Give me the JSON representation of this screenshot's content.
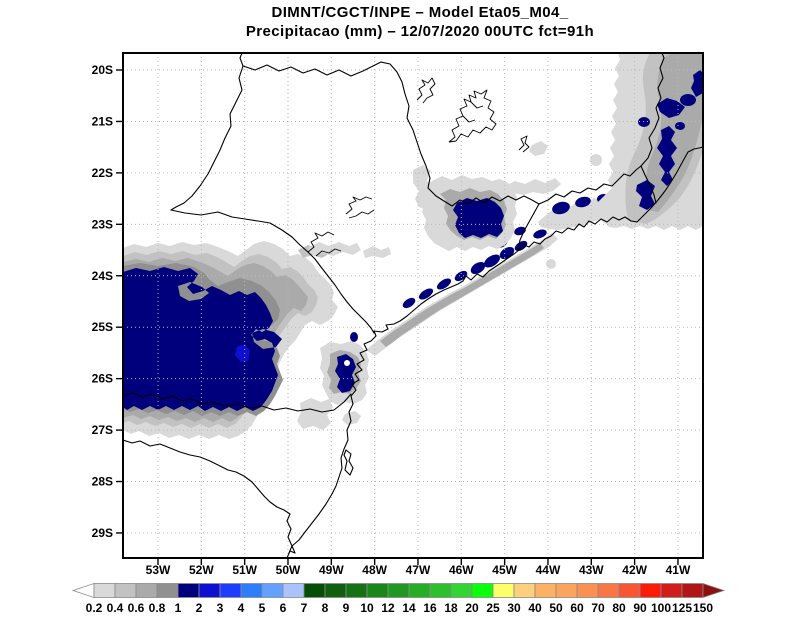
{
  "figure": {
    "title_line1": "DIMNT/CGCT/INPE –  Model Eta05_M04_",
    "title_line2": "Precipitacao (mm) – 12/07/2020 00UTC fct=91h",
    "field": "Precipitacao (mm)",
    "model": "Eta05_M04_",
    "datetime": "12/07/2020 00UTC",
    "forecast": "fct=91h"
  },
  "map": {
    "lat_labels": [
      "20S",
      "21S",
      "22S",
      "23S",
      "24S",
      "25S",
      "26S",
      "27S",
      "28S",
      "29S"
    ],
    "lon_labels": [
      "53W",
      "52W",
      "51W",
      "50W",
      "49W",
      "48W",
      "47W",
      "46W",
      "45W",
      "44W",
      "43W",
      "42W",
      "41W"
    ],
    "shading_levels_mm": [
      "0.2",
      "0.4",
      "0.6",
      "0.8",
      "1",
      "2"
    ],
    "shading_colors": [
      "#d9d9d9",
      "#c2c2c2",
      "#aaaaaa",
      "#909090",
      "#00007d",
      "#0f0fd2"
    ]
  },
  "colorbar": {
    "tick_labels": [
      "0.2",
      "0.4",
      "0.6",
      "0.8",
      "1",
      "2",
      "3",
      "4",
      "5",
      "6",
      "7",
      "8",
      "9",
      "10",
      "12",
      "14",
      "16",
      "18",
      "20",
      "25",
      "30",
      "40",
      "50",
      "60",
      "70",
      "80",
      "90",
      "100",
      "125",
      "150"
    ],
    "segment_colors": [
      "#d9d9d9",
      "#c2c2c2",
      "#aaaaaa",
      "#909090",
      "#00007d",
      "#0f0fd2",
      "#1e3cff",
      "#2d7dff",
      "#64a0ff",
      "#aac3fa",
      "#064d06",
      "#0f5f0f",
      "#147214",
      "#1a861a",
      "#209920",
      "#26ad26",
      "#2cc12c",
      "#32d532",
      "#0aff0a",
      "#ffff69",
      "#fed07d",
      "#fcb164",
      "#fba55c",
      "#fa9150",
      "#f97747",
      "#f85532",
      "#fd1c0a",
      "#d21c1c",
      "#b01616"
    ],
    "under_arrow_color": "#ffffff",
    "over_arrow_color": "#8c1010"
  }
}
